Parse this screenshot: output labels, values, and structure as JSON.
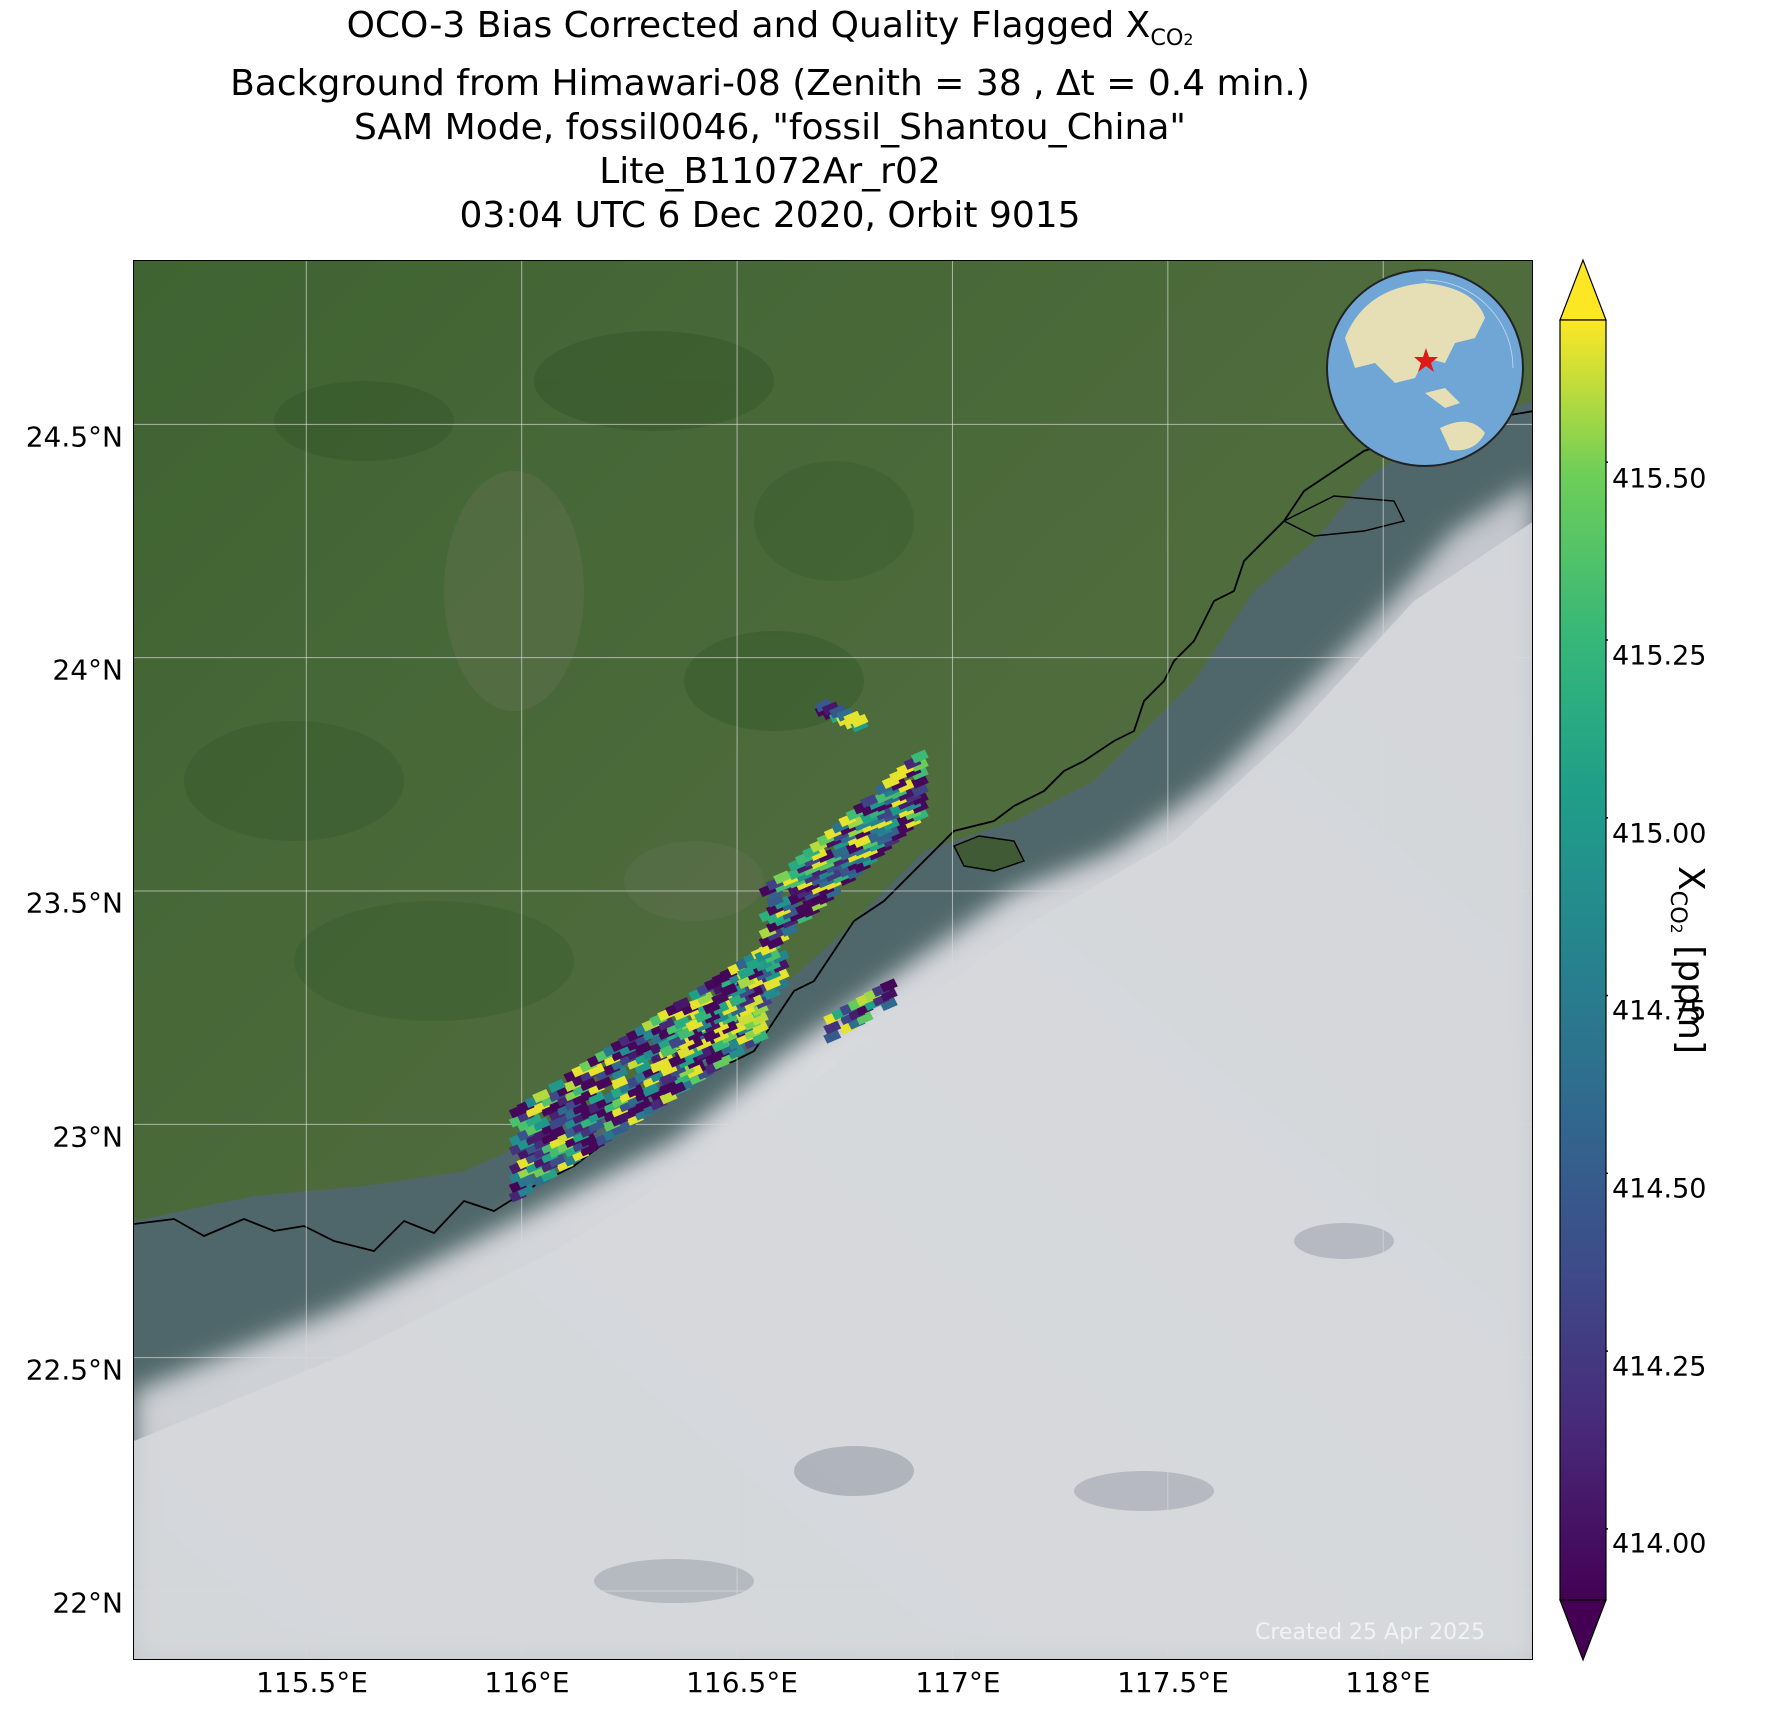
{
  "title": {
    "line1_prefix": "OCO-3 Bias Corrected and Quality Flagged X",
    "line1_sub": "CO",
    "line1_sub2": "2",
    "line2": "Background from Himawari-08 (Zenith = 38 , Δt =  0.4 min.)",
    "line3": "SAM Mode, fossil0046, \"fossil_Shantou_China\"",
    "line4": "Lite_B11072Ar_r02",
    "line5": "03:04 UTC 6 Dec 2020, Orbit 9015"
  },
  "map": {
    "lat_ticks": [
      "24.5°N",
      "24°N",
      "23.5°N",
      "23°N",
      "22.5°N",
      "22°N"
    ],
    "lat_values": [
      24.5,
      24.0,
      23.5,
      23.0,
      22.5,
      22.0
    ],
    "lon_ticks": [
      "115.5°E",
      "116°E",
      "116.5°E",
      "117°E",
      "117.5°E",
      "118°E"
    ],
    "lon_values": [
      115.5,
      116.0,
      116.5,
      117.0,
      117.5,
      118.0
    ],
    "lon_range": [
      115.1,
      118.35
    ],
    "lat_range": [
      21.85,
      24.85
    ],
    "target_marker": "red star",
    "colors": {
      "land": "#4b6b3a",
      "ocean": "#4d6a6e",
      "cloud": "#d4d6da"
    }
  },
  "colorbar": {
    "ticks": [
      "415.50",
      "415.25",
      "415.00",
      "414.75",
      "414.50",
      "414.25",
      "414.00"
    ],
    "tick_values": [
      415.5,
      415.25,
      415.0,
      414.75,
      414.5,
      414.25,
      414.0
    ],
    "range": [
      413.9,
      415.7
    ],
    "colormap": "viridis",
    "extend": "both",
    "label_prefix": "X",
    "label_sub": "CO",
    "label_sub2": "2",
    "label_suffix": " [ppm]"
  },
  "footer": {
    "created": "Created 25 Apr 2025"
  }
}
